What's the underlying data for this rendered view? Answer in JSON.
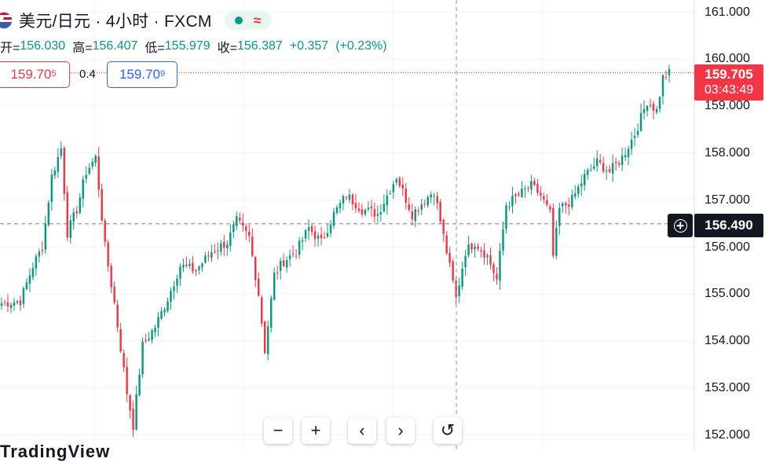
{
  "header": {
    "symbol_title": "美元/日元 · 4小时 · FXCM",
    "flag_icon": "us-japan-flag-icon",
    "status_dot_color": "#089981",
    "wave_icon_glyph": "≈"
  },
  "ohlc": {
    "open_label": "开=",
    "open_value": "156.030",
    "high_label": "高=",
    "high_value": "156.407",
    "low_label": "低=",
    "low_value": "155.979",
    "close_label": "收=",
    "close_value": "156.387",
    "change": "+0.357",
    "change_pct": "(+0.23%)"
  },
  "quote": {
    "sell_main": "159.70",
    "sell_sup": "5",
    "spread": "0.4",
    "buy_main": "159.70",
    "buy_sup": "9"
  },
  "price_axis": {
    "labels": [
      "161.000",
      "160.000",
      "159.000",
      "158.000",
      "157.000",
      "156.000",
      "155.000",
      "154.000",
      "153.000",
      "152.000"
    ],
    "last_price": "159.705",
    "countdown": "03:43:49",
    "crosshair_price": "156.490"
  },
  "nav": {
    "zoom_out": "−",
    "zoom_in": "+",
    "scroll_left": "‹",
    "scroll_right": "›",
    "reset": "↺"
  },
  "watermark": "TradingView",
  "colors": {
    "up": "#089981",
    "down": "#f23645",
    "sell": "#f23645",
    "buy": "#2962ff",
    "grid": "#f0f3fa"
  },
  "chart_data": {
    "type": "candlestick",
    "interval": "4h",
    "ylim": [
      151.9,
      161.3
    ],
    "last_price": 159.705,
    "crosshair_price": 156.49,
    "waypoints": [
      {
        "i": 0,
        "price": 154.8
      },
      {
        "i": 6,
        "price": 154.85
      },
      {
        "i": 10,
        "price": 155.6
      },
      {
        "i": 13,
        "price": 156.0
      },
      {
        "i": 16,
        "price": 157.5
      },
      {
        "i": 19,
        "price": 158.1
      },
      {
        "i": 21,
        "price": 156.3
      },
      {
        "i": 24,
        "price": 156.8
      },
      {
        "i": 27,
        "price": 157.6
      },
      {
        "i": 30,
        "price": 157.9
      },
      {
        "i": 33,
        "price": 156.0
      },
      {
        "i": 36,
        "price": 154.8
      },
      {
        "i": 40,
        "price": 152.9
      },
      {
        "i": 42,
        "price": 152.2
      },
      {
        "i": 45,
        "price": 153.9
      },
      {
        "i": 49,
        "price": 154.3
      },
      {
        "i": 53,
        "price": 154.9
      },
      {
        "i": 57,
        "price": 155.6
      },
      {
        "i": 62,
        "price": 155.5
      },
      {
        "i": 67,
        "price": 155.9
      },
      {
        "i": 72,
        "price": 156.1
      },
      {
        "i": 75,
        "price": 156.55
      },
      {
        "i": 79,
        "price": 156.2
      },
      {
        "i": 82,
        "price": 155.0
      },
      {
        "i": 84,
        "price": 153.8
      },
      {
        "i": 87,
        "price": 155.4
      },
      {
        "i": 90,
        "price": 155.7
      },
      {
        "i": 94,
        "price": 155.9
      },
      {
        "i": 98,
        "price": 156.4
      },
      {
        "i": 102,
        "price": 156.1
      },
      {
        "i": 106,
        "price": 156.7
      },
      {
        "i": 110,
        "price": 157.1
      },
      {
        "i": 115,
        "price": 156.8
      },
      {
        "i": 120,
        "price": 156.7
      },
      {
        "i": 126,
        "price": 157.5
      },
      {
        "i": 131,
        "price": 156.7
      },
      {
        "i": 135,
        "price": 157.0
      },
      {
        "i": 138,
        "price": 157.2
      },
      {
        "i": 142,
        "price": 155.9
      },
      {
        "i": 145,
        "price": 154.9
      },
      {
        "i": 148,
        "price": 155.9
      },
      {
        "i": 151,
        "price": 156.1
      },
      {
        "i": 155,
        "price": 155.8
      },
      {
        "i": 158,
        "price": 155.3
      },
      {
        "i": 161,
        "price": 156.9
      },
      {
        "i": 165,
        "price": 157.1
      },
      {
        "i": 169,
        "price": 157.3
      },
      {
        "i": 172,
        "price": 157.1
      },
      {
        "i": 175,
        "price": 156.7
      },
      {
        "i": 176,
        "price": 155.8
      },
      {
        "i": 178,
        "price": 156.8
      },
      {
        "i": 182,
        "price": 157.0
      },
      {
        "i": 186,
        "price": 157.5
      },
      {
        "i": 190,
        "price": 157.8
      },
      {
        "i": 194,
        "price": 157.6
      },
      {
        "i": 198,
        "price": 157.9
      },
      {
        "i": 202,
        "price": 158.4
      },
      {
        "i": 206,
        "price": 159.1
      },
      {
        "i": 209,
        "price": 158.9
      },
      {
        "i": 211,
        "price": 159.6
      },
      {
        "i": 213,
        "price": 159.7
      }
    ]
  }
}
